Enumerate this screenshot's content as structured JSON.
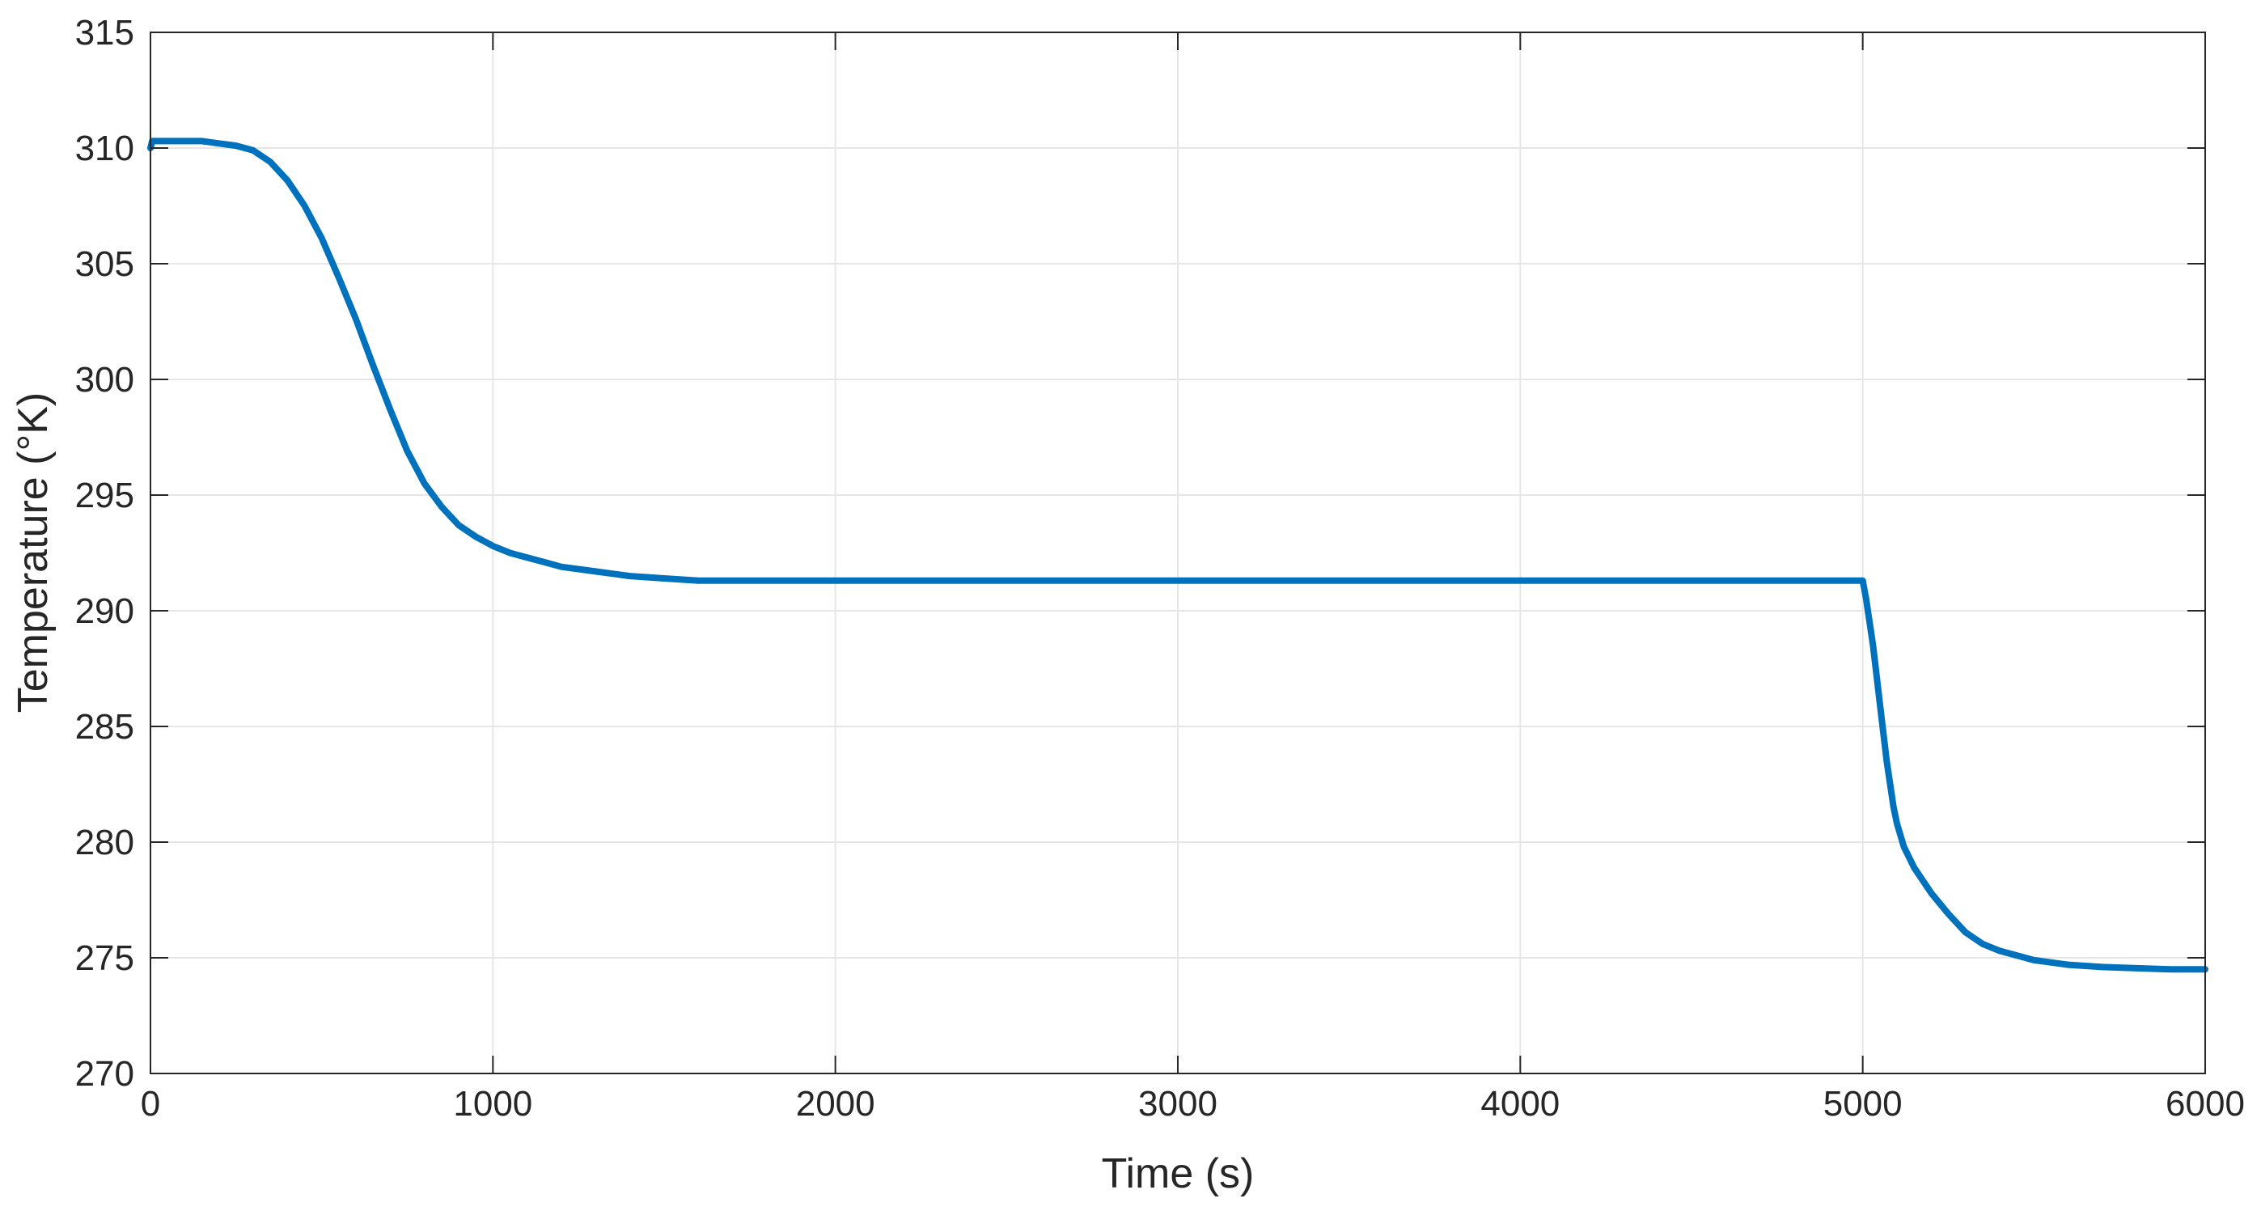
{
  "chart_data": {
    "type": "line",
    "title": "",
    "xlabel": "Time (s)",
    "ylabel": "Temperature (°K)",
    "xlim": [
      0,
      6000
    ],
    "ylim": [
      270,
      315
    ],
    "xticks": [
      0,
      1000,
      2000,
      3000,
      4000,
      5000,
      6000
    ],
    "yticks": [
      270,
      275,
      280,
      285,
      290,
      295,
      300,
      305,
      310,
      315
    ],
    "xtick_labels": [
      "0",
      "1000",
      "2000",
      "3000",
      "4000",
      "5000",
      "6000"
    ],
    "ytick_labels": [
      "270",
      "275",
      "280",
      "285",
      "290",
      "295",
      "300",
      "305",
      "310",
      "315"
    ],
    "grid": true,
    "colors": {
      "series": "#0072BD",
      "grid": "#e6e6e6",
      "axes": "#262626"
    },
    "series": [
      {
        "x": [
          0,
          5,
          10,
          50,
          100,
          150,
          200,
          250,
          300,
          350,
          400,
          450,
          500,
          550,
          600,
          650,
          700,
          750,
          800,
          850,
          900,
          950,
          1000,
          1050,
          1100,
          1150,
          1200,
          1300,
          1400,
          1500,
          1600,
          1800,
          2000,
          2500,
          3000,
          3500,
          4000,
          4500,
          5000,
          5010,
          5030,
          5050,
          5070,
          5090,
          5100,
          5120,
          5150,
          5200,
          5250,
          5300,
          5350,
          5400,
          5450,
          5500,
          5600,
          5700,
          5800,
          5900,
          6000
        ],
        "y": [
          310.0,
          310.3,
          310.3,
          310.3,
          310.3,
          310.3,
          310.2,
          310.1,
          309.9,
          309.4,
          308.6,
          307.5,
          306.1,
          304.4,
          302.6,
          300.6,
          298.7,
          296.9,
          295.5,
          294.5,
          293.7,
          293.2,
          292.8,
          292.5,
          292.3,
          292.1,
          291.9,
          291.7,
          291.5,
          291.4,
          291.3,
          291.3,
          291.3,
          291.3,
          291.3,
          291.3,
          291.3,
          291.3,
          291.3,
          290.5,
          288.5,
          286.0,
          283.5,
          281.5,
          280.8,
          279.8,
          278.9,
          277.8,
          276.9,
          276.1,
          275.6,
          275.3,
          275.1,
          274.9,
          274.7,
          274.6,
          274.55,
          274.5,
          274.5
        ]
      }
    ]
  }
}
